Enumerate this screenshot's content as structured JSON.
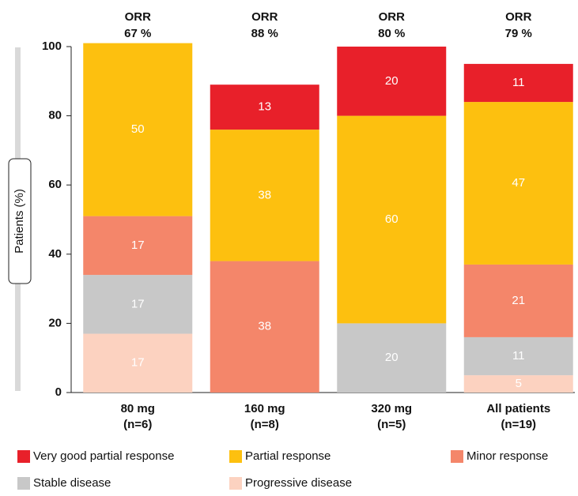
{
  "chart_data": {
    "type": "stacked-bar",
    "y_label": "Patients (%)",
    "categories": [
      "80 mg",
      "160 mg",
      "320 mg",
      "All patients"
    ],
    "category_notes": [
      "(n=6)",
      "(n=8)",
      "(n=5)",
      "(n=19)"
    ],
    "orr": [
      {
        "title": "ORR",
        "text": "67 %"
      },
      {
        "title": "ORR",
        "text": "88 %"
      },
      {
        "title": "ORR",
        "text": "80 %"
      },
      {
        "title": "ORR",
        "text": "79 %"
      }
    ],
    "ylim": [
      0,
      100
    ],
    "yticks": [
      0,
      20,
      40,
      60,
      80,
      100
    ],
    "series": [
      {
        "name": "Progressive disease",
        "color": "#fcd2c0",
        "values": [
          17,
          null,
          null,
          5
        ]
      },
      {
        "name": "Stable disease",
        "color": "#c8c8c8",
        "values": [
          17,
          null,
          20,
          11
        ]
      },
      {
        "name": "Minor response",
        "color": "#f4866a",
        "values": [
          17,
          38,
          null,
          21
        ]
      },
      {
        "name": "Partial response",
        "color": "#fdc00f",
        "values": [
          50,
          38,
          60,
          47
        ]
      },
      {
        "name": "Very good partial response",
        "color": "#e8202a",
        "values": [
          null,
          13,
          20,
          11
        ]
      }
    ]
  }
}
